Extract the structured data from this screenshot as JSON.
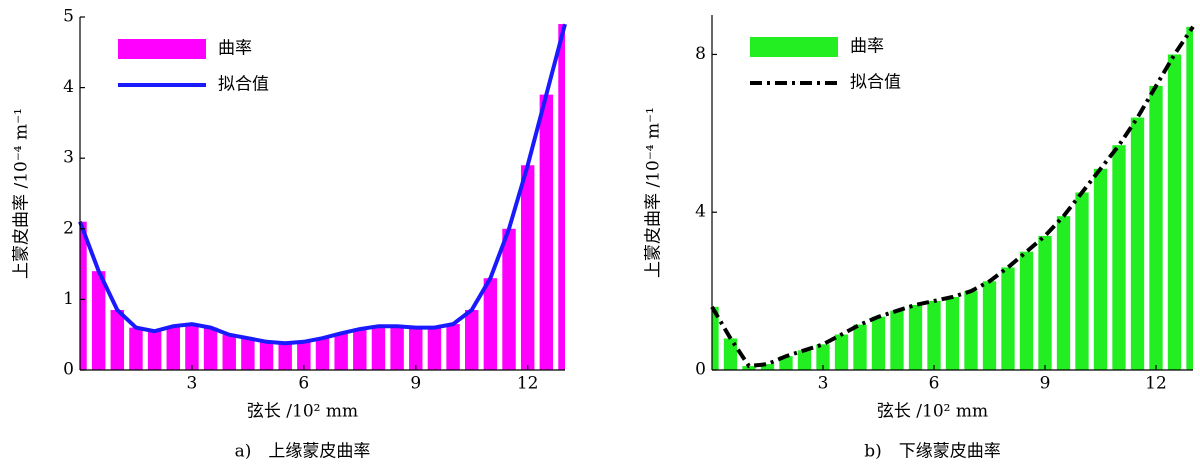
{
  "chart_data": [
    {
      "type": "bar",
      "caption": "a)　上缘蒙皮曲率",
      "xlabel": "弦长 /10² mm",
      "ylabel": "上蒙皮曲率 /10⁻⁴ m⁻¹",
      "x": [
        0,
        0.5,
        1,
        1.5,
        2,
        2.5,
        3,
        3.5,
        4,
        4.5,
        5,
        5.5,
        6,
        6.5,
        7,
        7.5,
        8,
        8.5,
        9,
        9.5,
        10,
        10.5,
        11,
        11.5,
        12,
        12.5,
        13
      ],
      "series": [
        {
          "name": "曲率",
          "color": "#ff00ff",
          "values": [
            2.1,
            1.4,
            0.85,
            0.6,
            0.55,
            0.62,
            0.65,
            0.6,
            0.5,
            0.45,
            0.4,
            0.38,
            0.4,
            0.45,
            0.52,
            0.58,
            0.62,
            0.62,
            0.6,
            0.6,
            0.65,
            0.85,
            1.3,
            2.0,
            2.9,
            3.9,
            4.9
          ]
        },
        {
          "name": "拟合值",
          "color": "#1a1aff",
          "line_style": "solid",
          "values": [
            2.1,
            1.4,
            0.85,
            0.6,
            0.55,
            0.62,
            0.65,
            0.6,
            0.5,
            0.45,
            0.4,
            0.38,
            0.4,
            0.45,
            0.52,
            0.58,
            0.62,
            0.62,
            0.6,
            0.6,
            0.65,
            0.85,
            1.3,
            2.0,
            2.9,
            3.9,
            4.9
          ]
        }
      ],
      "xlim": [
        0,
        13
      ],
      "xticks": [
        3,
        6,
        9,
        12
      ],
      "ylim": [
        0,
        5
      ],
      "yticks": [
        0,
        1,
        2,
        3,
        4,
        5
      ],
      "legend": "upper left"
    },
    {
      "type": "bar",
      "caption": "b)　下缘蒙皮曲率",
      "xlabel": "弦长 /10² mm",
      "ylabel": "上蒙皮曲率 /10⁻⁴ m⁻¹",
      "x": [
        0,
        0.5,
        1,
        1.5,
        2,
        2.5,
        3,
        3.5,
        4,
        4.5,
        5,
        5.5,
        6,
        6.5,
        7,
        7.5,
        8,
        8.5,
        9,
        9.5,
        10,
        10.5,
        11,
        11.5,
        12,
        12.5,
        13
      ],
      "series": [
        {
          "name": "曲率",
          "color": "#22ee22",
          "values": [
            1.6,
            0.8,
            0.1,
            0.15,
            0.35,
            0.5,
            0.65,
            0.9,
            1.15,
            1.35,
            1.5,
            1.65,
            1.75,
            1.85,
            2.0,
            2.25,
            2.6,
            3.0,
            3.4,
            3.9,
            4.5,
            5.1,
            5.7,
            6.4,
            7.2,
            8.0,
            8.7
          ]
        },
        {
          "name": "拟合值",
          "color": "#000000",
          "line_style": "dashdot",
          "values": [
            1.6,
            0.8,
            0.1,
            0.15,
            0.35,
            0.5,
            0.65,
            0.9,
            1.15,
            1.35,
            1.5,
            1.65,
            1.75,
            1.85,
            2.0,
            2.25,
            2.6,
            3.0,
            3.4,
            3.9,
            4.5,
            5.1,
            5.7,
            6.4,
            7.2,
            8.0,
            8.7
          ]
        }
      ],
      "xlim": [
        0,
        13
      ],
      "xticks": [
        3,
        6,
        9,
        12
      ],
      "ylim": [
        0,
        9
      ],
      "yticks": [
        0,
        4,
        8
      ],
      "legend": "upper left"
    }
  ]
}
